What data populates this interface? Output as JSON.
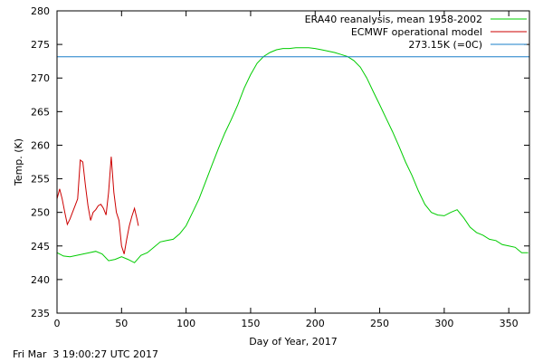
{
  "chart_data": {
    "type": "line",
    "xlabel": "Day of Year, 2017",
    "ylabel": "Temp. (K)",
    "xlim": [
      0,
      366
    ],
    "ylim": [
      235,
      280
    ],
    "x_ticks": [
      0,
      50,
      100,
      150,
      200,
      250,
      300,
      350
    ],
    "y_ticks": [
      235,
      240,
      245,
      250,
      255,
      260,
      265,
      270,
      275,
      280
    ],
    "grid": false,
    "legend_position": "top-right",
    "series": [
      {
        "name": "ERA40 reanalysis, mean 1958-2002",
        "color": "#00cc00",
        "x": [
          0,
          5,
          10,
          15,
          20,
          25,
          30,
          35,
          40,
          45,
          50,
          55,
          60,
          65,
          70,
          75,
          80,
          85,
          90,
          95,
          100,
          105,
          110,
          115,
          120,
          125,
          130,
          135,
          140,
          145,
          150,
          155,
          160,
          165,
          170,
          175,
          180,
          185,
          190,
          195,
          200,
          205,
          210,
          215,
          220,
          225,
          230,
          235,
          240,
          245,
          250,
          255,
          260,
          265,
          270,
          275,
          280,
          285,
          290,
          295,
          300,
          305,
          310,
          315,
          320,
          325,
          330,
          335,
          340,
          345,
          350,
          355,
          360,
          365
        ],
        "y": [
          244.0,
          243.5,
          243.4,
          243.6,
          243.8,
          244.0,
          244.2,
          243.8,
          242.8,
          243.0,
          243.4,
          243.0,
          242.5,
          243.6,
          244.0,
          244.8,
          245.6,
          245.8,
          246.0,
          246.8,
          248.0,
          250.0,
          252.0,
          254.5,
          257.0,
          259.5,
          261.8,
          263.8,
          266.0,
          268.5,
          270.5,
          272.2,
          273.2,
          273.8,
          274.2,
          274.4,
          274.4,
          274.5,
          274.5,
          274.5,
          274.4,
          274.2,
          274.0,
          273.8,
          273.5,
          273.2,
          272.6,
          271.6,
          270.0,
          268.0,
          266.0,
          264.0,
          262.0,
          259.8,
          257.5,
          255.5,
          253.2,
          251.2,
          250.0,
          249.6,
          249.5,
          250.0,
          250.4,
          249.2,
          247.8,
          247.0,
          246.6,
          246.0,
          245.8,
          245.2,
          245.0,
          244.8,
          244.0,
          244.0
        ]
      },
      {
        "name": "ECMWF operational model",
        "color": "#cc0000",
        "x": [
          0,
          2,
          4,
          6,
          8,
          10,
          12,
          14,
          16,
          18,
          20,
          22,
          24,
          26,
          28,
          30,
          32,
          34,
          36,
          38,
          40,
          42,
          44,
          46,
          48,
          50,
          52,
          54,
          56,
          58,
          60,
          62,
          63
        ],
        "y": [
          252.0,
          253.5,
          252.0,
          250.0,
          248.2,
          249.0,
          250.0,
          251.0,
          252.0,
          257.8,
          257.5,
          254.0,
          251.0,
          248.8,
          250.0,
          250.4,
          251.0,
          251.2,
          250.6,
          249.6,
          253.0,
          258.3,
          253.0,
          250.0,
          248.8,
          245.0,
          243.8,
          246.0,
          248.0,
          249.4,
          250.6,
          249.0,
          248.0
        ]
      },
      {
        "name": "273.15K (=0C)",
        "color": "#1a7fc9",
        "x": [
          0,
          366
        ],
        "y": [
          273.15,
          273.15
        ]
      }
    ]
  },
  "footer": {
    "timestamp": "Fri Mar  3 19:00:27 UTC 2017"
  }
}
